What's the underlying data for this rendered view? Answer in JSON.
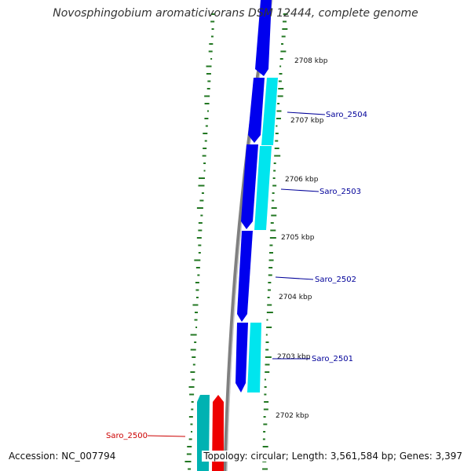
{
  "title": "Novosphingobium aromaticivorans DSM 12444, complete genome",
  "footer": {
    "accession": "Accession: NC_007794",
    "topology": "Topology: circular; Length: 3,561,584 bp; Genes: 3,397"
  },
  "colors": {
    "backbone": "#808080",
    "forward_gene": "#0000ee",
    "reverse_gene": "#00e5ee",
    "highlight_gene": "#ee0000",
    "highlight_reverse_gene": "#00b2b2",
    "gc_ticks": "#227722",
    "label_blue": "#000099",
    "label_red": "#cc0000",
    "tick_label": "#111111"
  },
  "ticks": [
    "2708 kbp",
    "2707 kbp",
    "2706 kbp",
    "2705 kbp",
    "2704 kbp",
    "2703 kbp",
    "2702 kbp"
  ],
  "gene_labels": [
    {
      "name": "Saro_2504",
      "color": "label_blue"
    },
    {
      "name": "Saro_2503",
      "color": "label_blue"
    },
    {
      "name": "Saro_2502",
      "color": "label_blue"
    },
    {
      "name": "Saro_2501",
      "color": "label_blue"
    },
    {
      "name": "Saro_2500",
      "color": "label_red"
    }
  ]
}
